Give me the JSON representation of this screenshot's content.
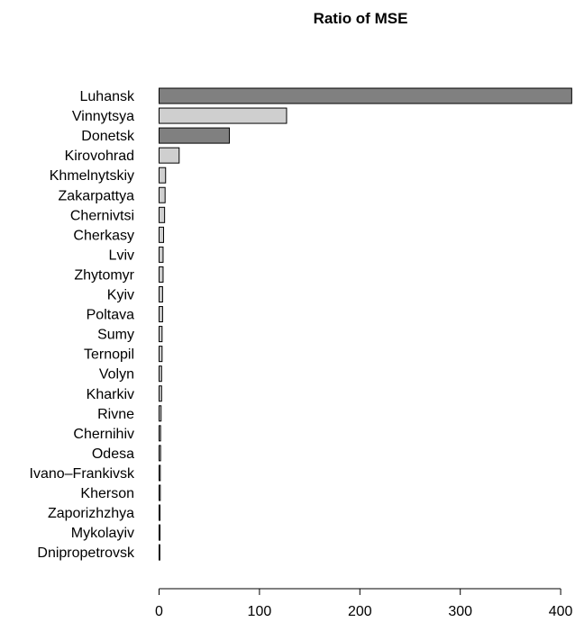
{
  "chart_data": {
    "type": "bar",
    "orientation": "horizontal",
    "title": "Ratio of MSE",
    "xlabel": "",
    "ylabel": "",
    "xlim": [
      0,
      410
    ],
    "x_ticks": [
      0,
      100,
      200,
      300,
      400
    ],
    "grid": false,
    "colors": {
      "dark": "#808080",
      "light": "#cfcfcf",
      "edge": "#000000"
    },
    "bars": [
      {
        "label": "Luhansk",
        "value": 411,
        "color": "dark"
      },
      {
        "label": "Vinnytsya",
        "value": 127,
        "color": "light"
      },
      {
        "label": "Donetsk",
        "value": 70,
        "color": "dark"
      },
      {
        "label": "Kirovohrad",
        "value": 20,
        "color": "light"
      },
      {
        "label": "Khmelnytskiy",
        "value": 6.5,
        "color": "light"
      },
      {
        "label": "Zakarpattya",
        "value": 6,
        "color": "light"
      },
      {
        "label": "Chernivtsi",
        "value": 5.5,
        "color": "light"
      },
      {
        "label": "Cherkasy",
        "value": 4.5,
        "color": "light"
      },
      {
        "label": "Lviv",
        "value": 4,
        "color": "light"
      },
      {
        "label": "Zhytomyr",
        "value": 4,
        "color": "light"
      },
      {
        "label": "Kyiv",
        "value": 3.5,
        "color": "light"
      },
      {
        "label": "Poltava",
        "value": 3.5,
        "color": "light"
      },
      {
        "label": "Sumy",
        "value": 3,
        "color": "light"
      },
      {
        "label": "Ternopil",
        "value": 3,
        "color": "light"
      },
      {
        "label": "Volyn",
        "value": 2.5,
        "color": "light"
      },
      {
        "label": "Kharkiv",
        "value": 2.5,
        "color": "light"
      },
      {
        "label": "Rivne",
        "value": 2,
        "color": "light"
      },
      {
        "label": "Chernihiv",
        "value": 1.5,
        "color": "light"
      },
      {
        "label": "Odesa",
        "value": 1.5,
        "color": "light"
      },
      {
        "label": "Ivano–Frankivsk",
        "value": 1.2,
        "color": "light"
      },
      {
        "label": "Kherson",
        "value": 1.2,
        "color": "light"
      },
      {
        "label": "Zaporizhzhya",
        "value": 1,
        "color": "light"
      },
      {
        "label": "Mykolayiv",
        "value": 1,
        "color": "light"
      },
      {
        "label": "Dnipropetrovsk",
        "value": 0.8,
        "color": "light"
      }
    ]
  }
}
